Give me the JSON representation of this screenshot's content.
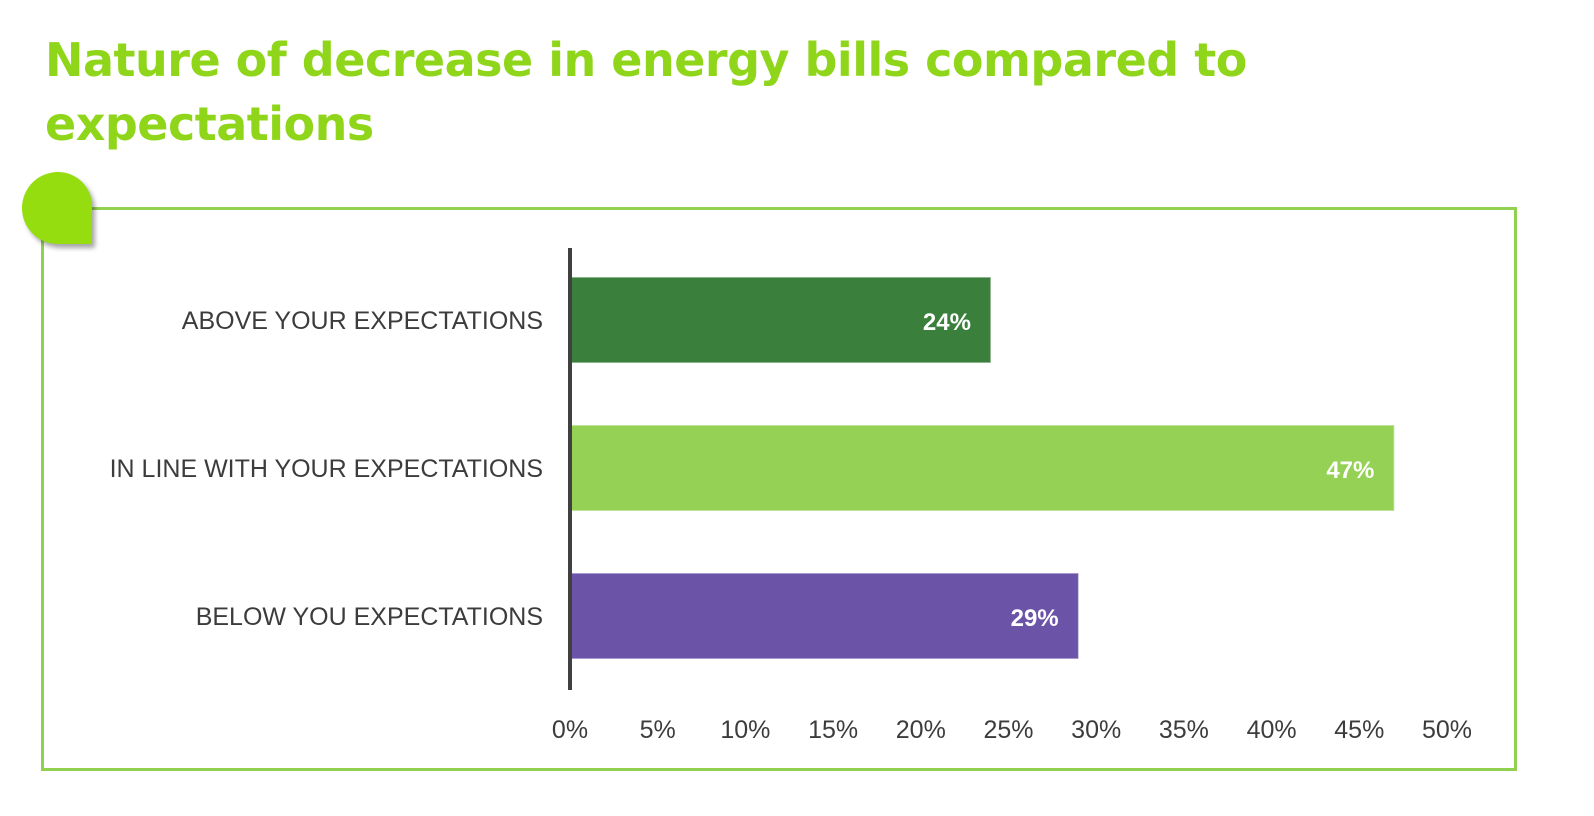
{
  "chart_data": {
    "type": "bar",
    "orientation": "horizontal",
    "title": "Nature of decrease in energy bills compared to expectations",
    "xlabel": "",
    "ylabel": "",
    "categories": [
      "ABOVE YOUR EXPECTATIONS",
      "IN LINE WITH YOUR EXPECTATIONS",
      "BELOW YOU EXPECTATIONS"
    ],
    "values": [
      24,
      47,
      29
    ],
    "data_labels": [
      "24%",
      "47%",
      "29%"
    ],
    "colors": [
      "#3a7f3c",
      "#95d155",
      "#6b53a8"
    ],
    "xlim": [
      0,
      50
    ],
    "x_ticks": [
      0,
      5,
      10,
      15,
      20,
      25,
      30,
      35,
      40,
      45,
      50
    ],
    "x_tick_labels": [
      "0%",
      "5%",
      "10%",
      "15%",
      "20%",
      "25%",
      "30%",
      "35%",
      "40%",
      "45%",
      "50%"
    ],
    "grid": false,
    "legend": "none",
    "value_unit": "%"
  },
  "theme": {
    "title_color": "#8fd61a",
    "frame_color": "#92d050",
    "axis_color": "#404040"
  }
}
